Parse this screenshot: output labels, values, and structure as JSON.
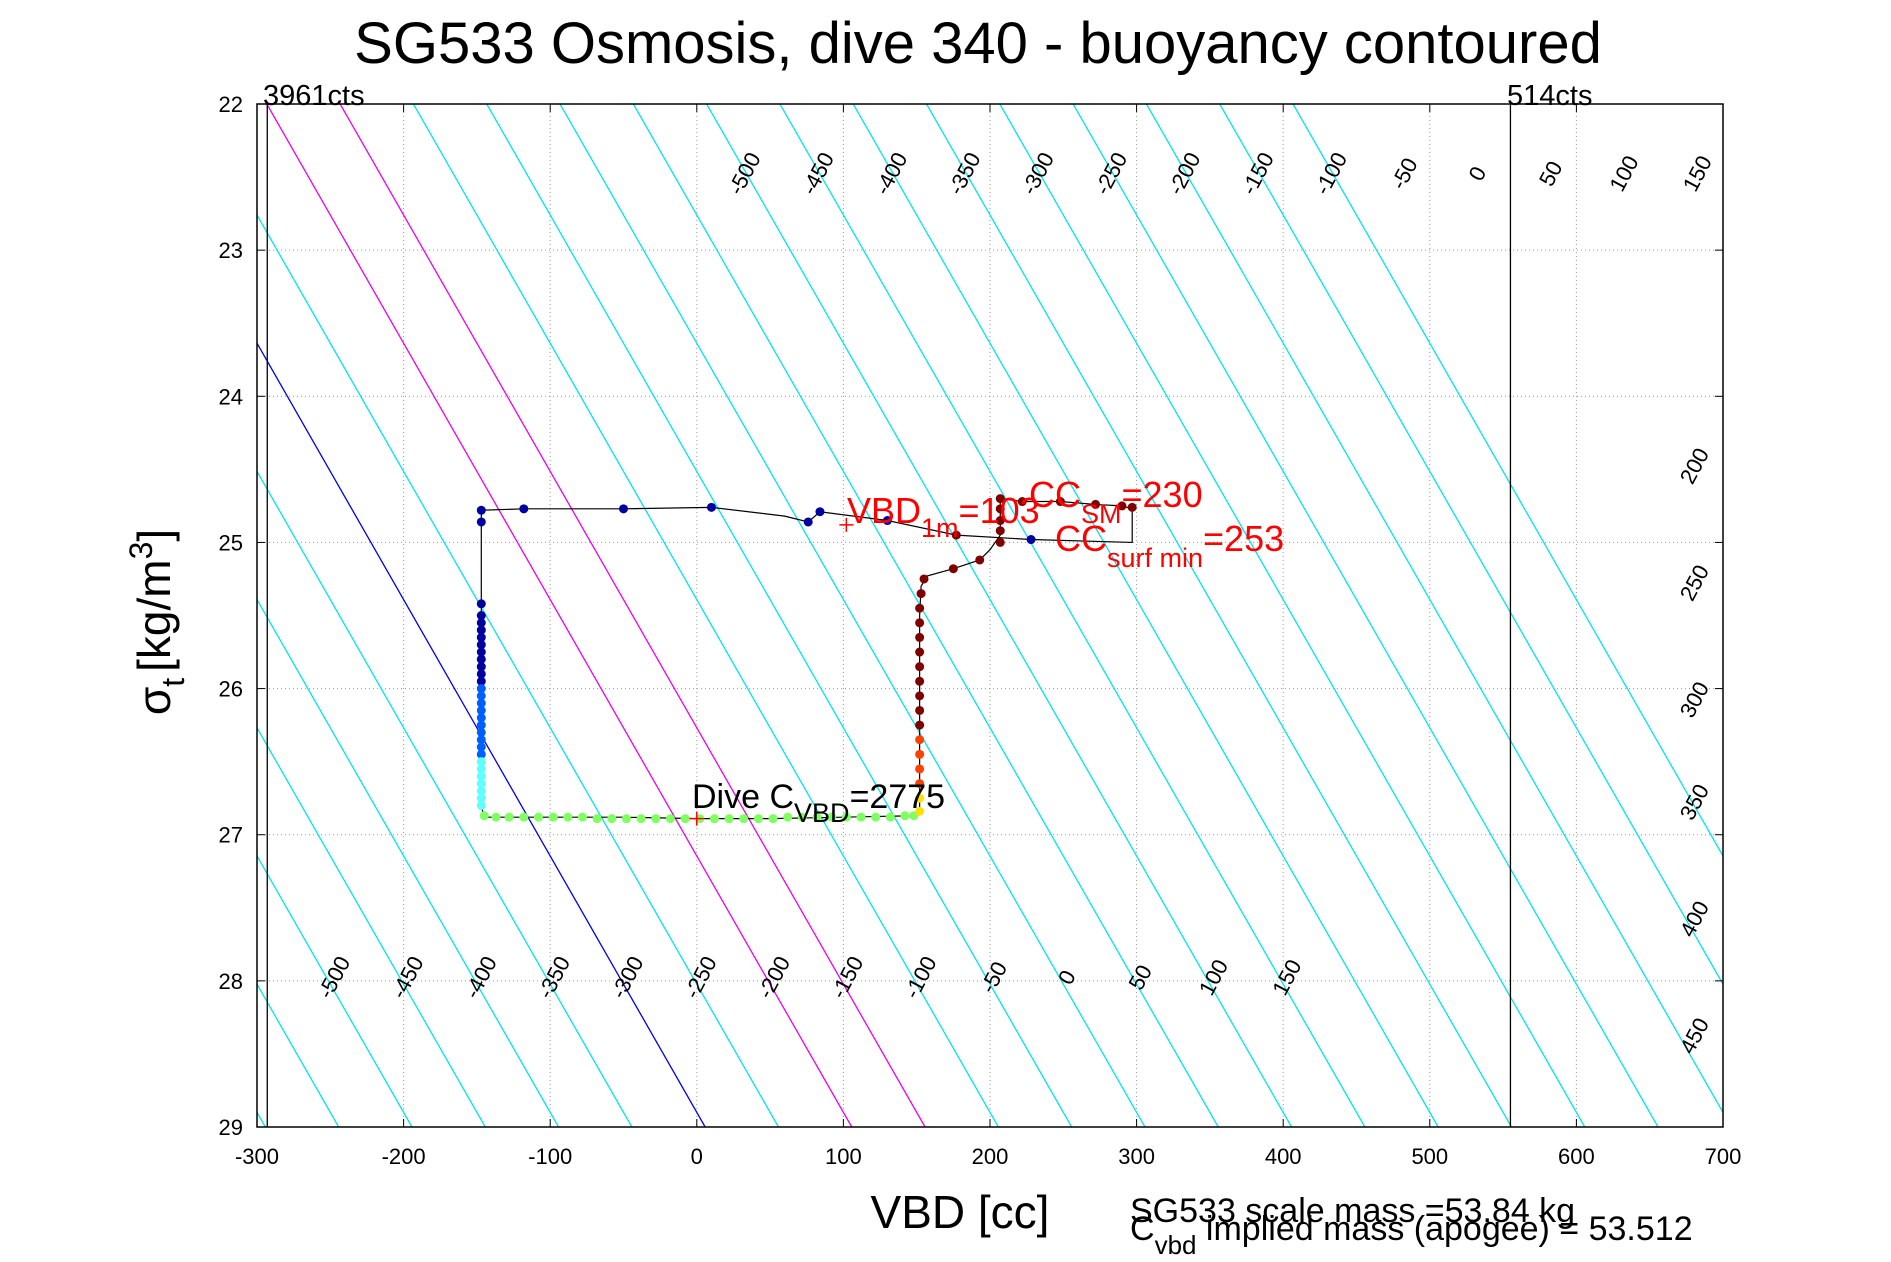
{
  "chart_data": {
    "type": "scatter",
    "title": "SG533 Osmosis, dive 340 - buoyancy contoured",
    "xlabel": "VBD [cc]",
    "ylabel_main": "σ",
    "ylabel_sub": "t",
    "ylabel_units": "[kg/m",
    "ylabel_sup": "3",
    "ylabel_close": "]",
    "xlim": [
      -300,
      700
    ],
    "ylim": [
      22,
      29
    ],
    "y_reversed": true,
    "grid": true,
    "x_ticks": [
      -300,
      -200,
      -100,
      0,
      100,
      200,
      300,
      400,
      500,
      600,
      700
    ],
    "y_ticks": [
      22,
      23,
      24,
      25,
      26,
      27,
      28,
      29
    ],
    "corner_labels": {
      "left": "3961cts",
      "right": "514cts"
    },
    "vlines": [
      {
        "x": -293
      },
      {
        "x": 555
      }
    ],
    "contour_colors": {
      "default": "#00e5ee",
      "zero": "#0000ee",
      "highlight": "#ee00ee"
    },
    "contours": {
      "x_at_sigma28_9": [
        -500,
        -450,
        -400,
        -350,
        -300,
        -250,
        -200,
        -150,
        -100,
        -50,
        0,
        50,
        100,
        150,
        200,
        250,
        300,
        350,
        400,
        450,
        500,
        550,
        600,
        650,
        700,
        750,
        800
      ],
      "slope_cc_per_sigma": 57,
      "highlighted": [
        100,
        150
      ],
      "zero_value": 0,
      "top_labels": [
        {
          "label": "-500",
          "x": 37
        },
        {
          "label": "-450",
          "x": 87
        },
        {
          "label": "-400",
          "x": 137
        },
        {
          "label": "-350",
          "x": 187
        },
        {
          "label": "-300",
          "x": 237
        },
        {
          "label": "-250",
          "x": 287
        },
        {
          "label": "-200",
          "x": 337
        },
        {
          "label": "-150",
          "x": 387
        },
        {
          "label": "-100",
          "x": 437
        },
        {
          "label": "-50",
          "x": 487
        },
        {
          "label": "0",
          "x": 537
        },
        {
          "label": "50",
          "x": 587
        },
        {
          "label": "100",
          "x": 637
        },
        {
          "label": "150",
          "x": 687
        }
      ],
      "top_label_sigma": 22.5,
      "bottom_labels": [
        {
          "label": "-500",
          "x": -243
        },
        {
          "label": "-450",
          "x": -193
        },
        {
          "label": "-400",
          "x": -143
        },
        {
          "label": "-350",
          "x": -93
        },
        {
          "label": "-300",
          "x": -43
        },
        {
          "label": "-250",
          "x": 7
        },
        {
          "label": "-200",
          "x": 57
        },
        {
          "label": "-150",
          "x": 107
        },
        {
          "label": "-100",
          "x": 157
        },
        {
          "label": "-50",
          "x": 207
        },
        {
          "label": "0",
          "x": 257
        },
        {
          "label": "50",
          "x": 307
        },
        {
          "label": "100",
          "x": 357
        },
        {
          "label": "150",
          "x": 407
        }
      ],
      "bottom_label_sigma": 28.0,
      "right_labels": [
        {
          "label": "200",
          "sigma": 24.5
        },
        {
          "label": "250",
          "sigma": 25.3
        },
        {
          "label": "300",
          "sigma": 26.1
        },
        {
          "label": "350",
          "sigma": 26.8
        },
        {
          "label": "400",
          "sigma": 27.6
        },
        {
          "label": "450",
          "sigma": 28.4
        }
      ],
      "right_label_x": 685
    },
    "dive_path": [
      [
        -147,
        24.78
      ],
      [
        -147,
        24.88
      ],
      [
        -147,
        25.4
      ],
      [
        -147,
        26.0
      ],
      [
        -147,
        26.6
      ],
      [
        -147,
        26.8
      ],
      [
        -145,
        26.88
      ],
      [
        -100,
        26.88
      ],
      [
        -50,
        26.88
      ],
      [
        0,
        26.89
      ],
      [
        50,
        26.89
      ],
      [
        100,
        26.88
      ],
      [
        148,
        26.87
      ]
    ],
    "climb_path": [
      [
        152,
        26.85
      ],
      [
        152,
        26.2
      ],
      [
        152,
        25.5
      ],
      [
        153,
        25.3
      ],
      [
        157,
        25.23
      ],
      [
        175,
        25.18
      ],
      [
        193,
        25.12
      ],
      [
        200,
        25.05
      ],
      [
        207,
        24.95
      ],
      [
        207,
        24.7
      ],
      [
        222,
        24.72
      ],
      [
        248,
        24.72
      ],
      [
        272,
        24.74
      ],
      [
        290,
        24.75
      ],
      [
        297,
        24.77
      ],
      [
        297,
        24.83
      ],
      [
        297,
        25.0
      ],
      [
        228,
        24.98
      ],
      [
        177,
        24.95
      ],
      [
        130,
        24.85
      ],
      [
        84,
        24.79
      ],
      [
        76,
        24.86
      ],
      [
        60,
        24.82
      ],
      [
        10,
        24.76
      ],
      [
        -50,
        24.77
      ],
      [
        -118,
        24.77
      ],
      [
        -147,
        24.78
      ]
    ],
    "descent_points": [
      [
        -147,
        24.78
      ],
      [
        -147,
        24.86
      ],
      [
        -147,
        25.42
      ],
      [
        -147,
        25.5
      ],
      [
        -147,
        25.55
      ],
      [
        -147,
        25.6
      ],
      [
        -147,
        25.65
      ],
      [
        -147,
        25.7
      ],
      [
        -147,
        25.75
      ],
      [
        -147,
        25.8
      ],
      [
        -147,
        25.85
      ],
      [
        -147,
        25.9
      ],
      [
        -147,
        25.95
      ],
      [
        -147,
        26.0
      ],
      [
        -147,
        26.05
      ],
      [
        -147,
        26.1
      ],
      [
        -147,
        26.15
      ],
      [
        -147,
        26.2
      ],
      [
        -147,
        26.25
      ],
      [
        -147,
        26.3
      ],
      [
        -147,
        26.35
      ],
      [
        -147,
        26.4
      ],
      [
        -147,
        26.45
      ],
      [
        -147,
        26.5
      ],
      [
        -147,
        26.55
      ],
      [
        -147,
        26.6
      ],
      [
        -147,
        26.65
      ],
      [
        -147,
        26.7
      ],
      [
        -147,
        26.75
      ],
      [
        -147,
        26.8
      ],
      [
        -145,
        26.87
      ],
      [
        -137,
        26.88
      ],
      [
        -128,
        26.88
      ],
      [
        -118,
        26.88
      ],
      [
        -108,
        26.88
      ],
      [
        -98,
        26.88
      ],
      [
        -88,
        26.88
      ],
      [
        -78,
        26.88
      ],
      [
        -68,
        26.89
      ],
      [
        -58,
        26.89
      ],
      [
        -48,
        26.89
      ],
      [
        -38,
        26.89
      ],
      [
        -28,
        26.89
      ],
      [
        -18,
        26.89
      ],
      [
        -8,
        26.89
      ],
      [
        2,
        26.89
      ],
      [
        12,
        26.89
      ],
      [
        22,
        26.89
      ],
      [
        32,
        26.89
      ],
      [
        42,
        26.89
      ],
      [
        52,
        26.89
      ],
      [
        62,
        26.88
      ],
      [
        72,
        26.88
      ],
      [
        82,
        26.88
      ],
      [
        92,
        26.88
      ],
      [
        102,
        26.88
      ],
      [
        112,
        26.88
      ],
      [
        122,
        26.88
      ],
      [
        132,
        26.88
      ],
      [
        142,
        26.87
      ],
      [
        148,
        26.87
      ]
    ],
    "climb_points": [
      [
        152,
        26.84
      ],
      [
        152,
        26.75
      ],
      [
        152,
        26.65
      ],
      [
        152,
        26.55
      ],
      [
        152,
        26.45
      ],
      [
        152,
        26.35
      ],
      [
        152,
        26.25
      ],
      [
        152,
        26.15
      ],
      [
        152,
        26.05
      ],
      [
        152,
        25.95
      ],
      [
        152,
        25.85
      ],
      [
        152,
        25.75
      ],
      [
        152,
        25.65
      ],
      [
        152,
        25.55
      ],
      [
        152,
        25.45
      ],
      [
        153,
        25.35
      ],
      [
        155,
        25.25
      ],
      [
        175,
        25.18
      ],
      [
        193,
        25.12
      ],
      [
        207,
        25.0
      ],
      [
        207,
        24.92
      ],
      [
        207,
        24.85
      ],
      [
        207,
        24.77
      ],
      [
        207,
        24.7
      ],
      [
        222,
        24.72
      ],
      [
        248,
        24.72
      ],
      [
        272,
        24.74
      ],
      [
        290,
        24.75
      ],
      [
        297,
        24.76
      ],
      [
        228,
        24.98
      ],
      [
        177,
        24.95
      ],
      [
        130,
        24.85
      ],
      [
        84,
        24.79
      ],
      [
        76,
        24.86
      ],
      [
        10,
        24.76
      ],
      [
        -50,
        24.77
      ],
      [
        -118,
        24.77
      ]
    ],
    "point_colors": {
      "surface": "#0000a0",
      "mid": "#0060ff",
      "deep_descent": "#60ffff",
      "bottom": "#80ff60",
      "deep_climb": "#ffe000",
      "mid_climb": "#ff4000",
      "climb": "#800000",
      "path": "#000000"
    },
    "markers": [
      {
        "x": 102,
        "y": 24.88,
        "color": "#ff0000"
      },
      {
        "x": 0,
        "y": 26.89,
        "color": "#ff0000"
      }
    ],
    "annotations": {
      "vbd_main": "VBD",
      "vbd_sub": "1m",
      "vbd_val": "=103",
      "cc_main": "CC",
      "cc_sub": "SM",
      "cc_val": "=230",
      "ccsurf_main": "CC",
      "ccsurf_sub": "surf min",
      "ccsurf_val": "=253",
      "dive_main": "Dive C",
      "dive_sub": "VBD",
      "dive_val": "=2775",
      "annotation_color": "#ff0000"
    },
    "footer": {
      "scale_mass": "SG533 scale mass =53.84 kg",
      "implied_main": "C",
      "implied_sub": "vbd",
      "implied_rest": " implied mass (apogee) = 53.512"
    }
  }
}
